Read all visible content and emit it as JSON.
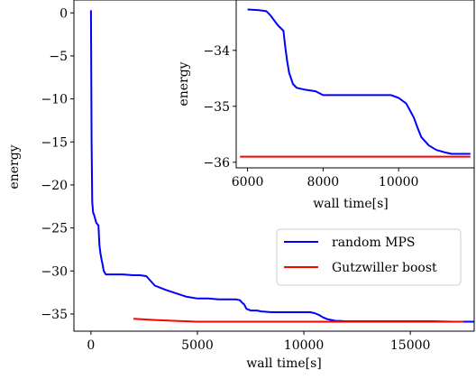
{
  "chart_data": [
    {
      "id": "main",
      "type": "line",
      "xlabel": "wall time[s]",
      "ylabel": "energy",
      "xlim": [
        -800,
        18000
      ],
      "ylim": [
        -37,
        1.5
      ],
      "xticks": [
        0,
        5000,
        10000,
        15000
      ],
      "xtick_labels": [
        "0",
        "5000",
        "10000",
        "15000"
      ],
      "yticks": [
        0,
        -5,
        -10,
        -15,
        -20,
        -25,
        -30,
        -35
      ],
      "ytick_labels": [
        "0",
        "−5",
        "−10",
        "−15",
        "−20",
        "−25",
        "−30",
        "−35"
      ],
      "legend": {
        "placement": "lower-right"
      },
      "series": [
        {
          "name": "random MPS",
          "color": "#0000ff",
          "x": [
            0,
            30,
            60,
            100,
            150,
            250,
            350,
            400,
            450,
            500,
            550,
            600,
            700,
            800,
            1000,
            1500,
            2000,
            2300,
            2600,
            3000,
            3500,
            4000,
            4500,
            5000,
            5500,
            6000,
            6500,
            6800,
            7000,
            7100,
            7200,
            7300,
            7500,
            7800,
            8000,
            8500,
            9000,
            9500,
            10000,
            10300,
            10500,
            10700,
            10900,
            11100,
            11300,
            11500,
            11700,
            11900,
            12000,
            13000,
            14000,
            15000,
            16000,
            17000,
            17500,
            18000
          ],
          "y": [
            0.3,
            -15,
            -22,
            -23.2,
            -23.5,
            -24.4,
            -24.7,
            -27.0,
            -28.0,
            -28.7,
            -29.3,
            -30.0,
            -30.4,
            -30.4,
            -30.4,
            -30.4,
            -30.5,
            -30.5,
            -30.6,
            -31.7,
            -32.2,
            -32.6,
            -33.0,
            -33.2,
            -33.2,
            -33.3,
            -33.3,
            -33.3,
            -33.4,
            -33.7,
            -33.9,
            -34.4,
            -34.6,
            -34.6,
            -34.7,
            -34.8,
            -34.8,
            -34.8,
            -34.8,
            -34.8,
            -34.9,
            -35.1,
            -35.4,
            -35.6,
            -35.7,
            -35.8,
            -35.8,
            -35.85,
            -35.85,
            -35.85,
            -35.85,
            -35.85,
            -35.85,
            -35.9,
            -35.9,
            -35.9
          ]
        },
        {
          "name": "Gutzwiller boost",
          "color": "#ff0000",
          "x": [
            2000,
            3000,
            4000,
            5000,
            8000,
            11000,
            14000,
            17500
          ],
          "y": [
            -35.55,
            -35.7,
            -35.8,
            -35.9,
            -35.9,
            -35.9,
            -35.9,
            -35.9
          ]
        }
      ]
    },
    {
      "id": "inset",
      "type": "line",
      "xlabel": "wall time[s]",
      "ylabel": "energy",
      "xlim": [
        5700,
        12000
      ],
      "ylim": [
        -36.1,
        -33.1
      ],
      "xticks": [
        6000,
        8000,
        10000
      ],
      "xtick_labels": [
        "6000",
        "8000",
        "10000"
      ],
      "yticks": [
        -34,
        -35,
        -36
      ],
      "ytick_labels": [
        "−34",
        "−35",
        "−36"
      ],
      "series": [
        {
          "color": "#0000ff",
          "x": [
            6000,
            6300,
            6500,
            6600,
            6800,
            6950,
            7000,
            7050,
            7100,
            7200,
            7300,
            7500,
            7800,
            8000,
            8200,
            8500,
            9000,
            9500,
            9800,
            10000,
            10200,
            10400,
            10500,
            10600,
            10800,
            11000,
            11200,
            11400,
            11500,
            11900
          ],
          "y": [
            -33.27,
            -33.28,
            -33.3,
            -33.37,
            -33.55,
            -33.65,
            -33.95,
            -34.2,
            -34.4,
            -34.6,
            -34.67,
            -34.7,
            -34.73,
            -34.8,
            -34.8,
            -34.8,
            -34.8,
            -34.8,
            -34.8,
            -34.85,
            -34.95,
            -35.2,
            -35.38,
            -35.55,
            -35.7,
            -35.78,
            -35.82,
            -35.85,
            -35.85,
            -35.85
          ]
        },
        {
          "color": "#ff0000",
          "x": [
            5800,
            11900
          ],
          "y": [
            -35.9,
            -35.9
          ]
        }
      ]
    }
  ]
}
